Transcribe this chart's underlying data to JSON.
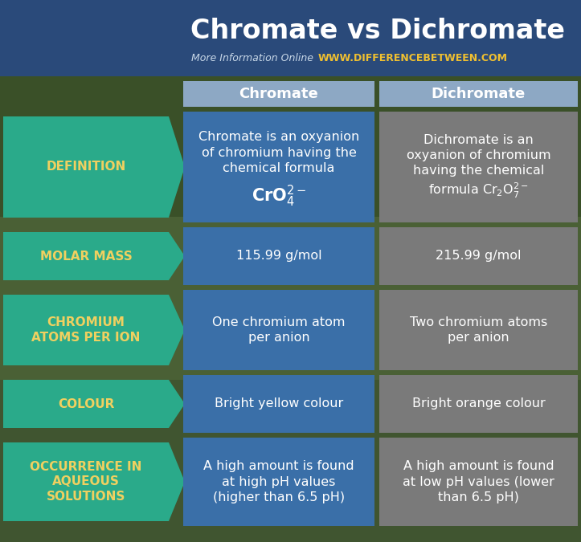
{
  "title": "Chromate vs Dichromate",
  "subtitle_normal": "More Information Online",
  "subtitle_bold": "WWW.DIFFERENCEBETWEEN.COM",
  "col1_header": "Chromate",
  "col2_header": "Dichromate",
  "header_bg": "#8da8c4",
  "col1_bg": "#3a6fa8",
  "col2_bg": "#7a7a7a",
  "row_label_bg": "#2aaa8a",
  "row_label_color": "#f0d060",
  "title_color": "#ffffff",
  "title_bg": "#2a4a7a",
  "cell_text_color": "#ffffff",
  "header_text_color": "#ffffff",
  "subtitle_normal_color": "#c8d8e8",
  "subtitle_bold_color": "#f0c030",
  "bg_color_top": "#4a6840",
  "bg_color_mid": "#3a5830",
  "bg_color_bot": "#2a4820",
  "rows": [
    {
      "label": "DEFINITION",
      "col1_lines": "Chromate is an oxyanion\nof chromium having the\nchemical formula",
      "col1_formula": "CrO$_4^{2-}$",
      "col2_lines": "Dichromate is an\noxyanion of chromium\nhaving the chemical\nformula Cr$_2$O$_7^{2-}$",
      "col2_has_formula": true
    },
    {
      "label": "MOLAR MASS",
      "col1_lines": "115.99 g/mol",
      "col1_formula": null,
      "col2_lines": "215.99 g/mol",
      "col2_has_formula": false
    },
    {
      "label": "CHROMIUM\nATOMS PER ION",
      "col1_lines": "One chromium atom\nper anion",
      "col1_formula": null,
      "col2_lines": "Two chromium atoms\nper anion",
      "col2_has_formula": false
    },
    {
      "label": "COLOUR",
      "col1_lines": "Bright yellow colour",
      "col1_formula": null,
      "col2_lines": "Bright orange colour",
      "col2_has_formula": false
    },
    {
      "label": "OCCURRENCE IN\nAQUEOUS\nSOLUTIONS",
      "col1_lines": "A high amount is found\nat high pH values\n(higher than 6.5 pH)",
      "col1_formula": null,
      "col2_lines": "A high amount is found\nat low pH values (lower\nthan 6.5 pH)",
      "col2_has_formula": false
    }
  ],
  "title_fontsize": 24,
  "header_fontsize": 13,
  "label_fontsize": 11,
  "cell_fontsize": 11.5
}
